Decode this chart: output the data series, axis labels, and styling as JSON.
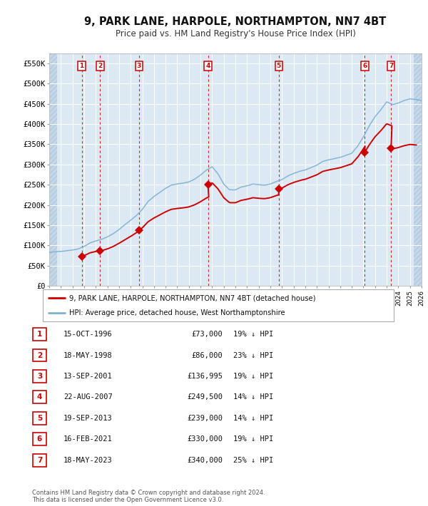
{
  "title": "9, PARK LANE, HARPOLE, NORTHAMPTON, NN7 4BT",
  "subtitle": "Price paid vs. HM Land Registry's House Price Index (HPI)",
  "xlim": [
    1994,
    2026
  ],
  "ylim": [
    0,
    575000
  ],
  "yticks": [
    0,
    50000,
    100000,
    150000,
    200000,
    250000,
    300000,
    350000,
    400000,
    450000,
    500000,
    550000
  ],
  "ytick_labels": [
    "£0",
    "£50K",
    "£100K",
    "£150K",
    "£200K",
    "£250K",
    "£300K",
    "£350K",
    "£400K",
    "£450K",
    "£500K",
    "£550K"
  ],
  "sale_dates_x": [
    1996.79,
    1998.38,
    2001.71,
    2007.64,
    2013.72,
    2021.12,
    2023.38
  ],
  "sale_prices_y": [
    73000,
    86000,
    136995,
    249500,
    239000,
    330000,
    340000
  ],
  "sale_labels": [
    "1",
    "2",
    "3",
    "4",
    "5",
    "6",
    "7"
  ],
  "sale_color": "#cc0000",
  "hpi_color": "#7fb3d3",
  "background_color": "#dce9f5",
  "grid_color": "#ffffff",
  "hatch_color": "#c5d8ea",
  "table_rows": [
    [
      "1",
      "15-OCT-1996",
      "£73,000",
      "19% ↓ HPI"
    ],
    [
      "2",
      "18-MAY-1998",
      "£86,000",
      "23% ↓ HPI"
    ],
    [
      "3",
      "13-SEP-2001",
      "£136,995",
      "19% ↓ HPI"
    ],
    [
      "4",
      "22-AUG-2007",
      "£249,500",
      "14% ↓ HPI"
    ],
    [
      "5",
      "19-SEP-2013",
      "£239,000",
      "14% ↓ HPI"
    ],
    [
      "6",
      "16-FEB-2021",
      "£330,000",
      "19% ↓ HPI"
    ],
    [
      "7",
      "18-MAY-2023",
      "£340,000",
      "25% ↓ HPI"
    ]
  ],
  "legend_property_label": "9, PARK LANE, HARPOLE, NORTHAMPTON, NN7 4BT (detached house)",
  "legend_hpi_label": "HPI: Average price, detached house, West Northamptonshire",
  "footnote": "Contains HM Land Registry data © Crown copyright and database right 2024.\nThis data is licensed under the Open Government Licence v3.0.",
  "hpi_anchors_x": [
    1994.0,
    1994.5,
    1995.0,
    1995.5,
    1996.0,
    1996.5,
    1997.0,
    1997.5,
    1998.0,
    1998.5,
    1999.0,
    1999.5,
    2000.0,
    2000.5,
    2001.0,
    2001.5,
    2002.0,
    2002.5,
    2003.0,
    2003.5,
    2004.0,
    2004.5,
    2005.0,
    2005.5,
    2006.0,
    2006.5,
    2007.0,
    2007.5,
    2008.0,
    2008.5,
    2009.0,
    2009.5,
    2010.0,
    2010.5,
    2011.0,
    2011.5,
    2012.0,
    2012.5,
    2013.0,
    2013.5,
    2014.0,
    2014.5,
    2015.0,
    2015.5,
    2016.0,
    2016.5,
    2017.0,
    2017.5,
    2018.0,
    2018.5,
    2019.0,
    2019.5,
    2020.0,
    2020.5,
    2021.0,
    2021.5,
    2022.0,
    2022.5,
    2023.0,
    2023.5,
    2024.0,
    2024.5,
    2025.0,
    2025.5,
    2026.0
  ],
  "hpi_anchors_y": [
    83000,
    84000,
    85000,
    87000,
    89000,
    92000,
    98000,
    107000,
    112000,
    116000,
    122000,
    130000,
    140000,
    152000,
    163000,
    175000,
    190000,
    210000,
    222000,
    232000,
    242000,
    250000,
    253000,
    255000,
    258000,
    265000,
    275000,
    287000,
    295000,
    278000,
    252000,
    238000,
    238000,
    245000,
    248000,
    252000,
    250000,
    249000,
    252000,
    258000,
    263000,
    272000,
    278000,
    283000,
    287000,
    293000,
    299000,
    308000,
    312000,
    315000,
    318000,
    323000,
    328000,
    345000,
    368000,
    395000,
    418000,
    435000,
    455000,
    448000,
    452000,
    458000,
    462000,
    460000,
    458000
  ]
}
